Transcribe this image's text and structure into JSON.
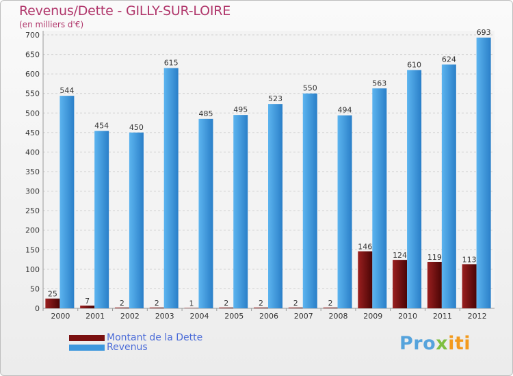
{
  "chart_data": {
    "type": "bar",
    "title": "Revenus/Dette - GILLY-SUR-LOIRE",
    "subtitle": "(en milliers d'€)",
    "xlabel": "",
    "ylabel": "",
    "ylim": [
      0,
      700
    ],
    "yticks": [
      0,
      50,
      100,
      150,
      200,
      250,
      300,
      350,
      400,
      450,
      500,
      550,
      600,
      650,
      700
    ],
    "grid": true,
    "categories": [
      "2000",
      "2001",
      "2002",
      "2003",
      "2004",
      "2005",
      "2006",
      "2007",
      "2008",
      "2009",
      "2010",
      "2011",
      "2012"
    ],
    "series": [
      {
        "name": "Montant de la Dette",
        "color": "#7a1010",
        "values": [
          25,
          7,
          2,
          2,
          1,
          2,
          2,
          2,
          2,
          146,
          124,
          119,
          113
        ]
      },
      {
        "name": "Revenus",
        "color": "#3d97dd",
        "values": [
          544,
          454,
          450,
          615,
          485,
          495,
          523,
          550,
          494,
          563,
          610,
          624,
          693
        ]
      }
    ],
    "legend_position": "bottom-left"
  },
  "brand": {
    "part1": "Pro",
    "part2": "x",
    "part3": "iti"
  }
}
